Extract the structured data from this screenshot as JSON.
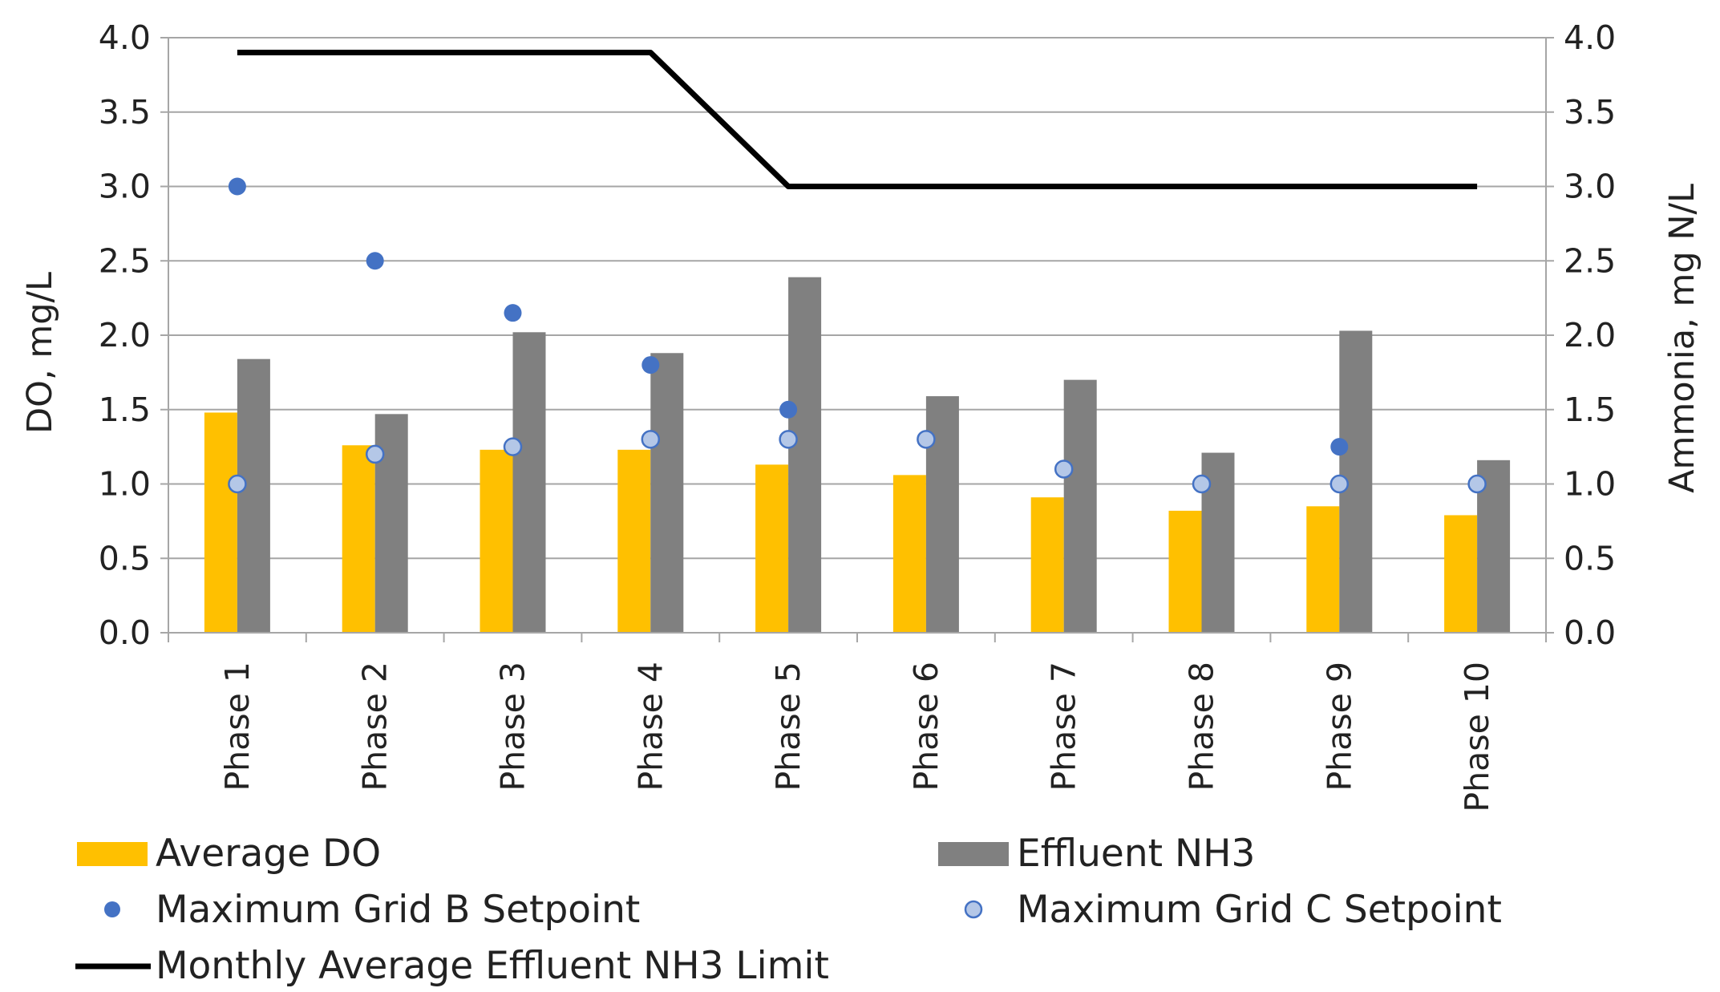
{
  "chart_data": {
    "type": "bar",
    "title": "",
    "categories": [
      "Phase 1",
      "Phase 2",
      "Phase 3",
      "Phase 4",
      "Phase 5",
      "Phase 6",
      "Phase 7",
      "Phase 8",
      "Phase 9",
      "Phase 10"
    ],
    "ylabel_left": "DO, mg/L",
    "ylabel_right": "Ammonia, mg N/L",
    "ylim_left": [
      0,
      4
    ],
    "ylim_right": [
      0,
      4
    ],
    "yticks": [
      "0.0",
      "0.5",
      "1.0",
      "1.5",
      "2.0",
      "2.5",
      "3.0",
      "3.5",
      "4.0"
    ],
    "grid": true,
    "legend_position": "bottom",
    "colors": {
      "average_do": "#FFC000",
      "effluent_nh3": "#808080",
      "grid_b": "#4472C4",
      "grid_c_fill": "#B4C7E7",
      "grid_c_stroke": "#4472C4",
      "nh3_limit": "#000000",
      "gridline": "#A6A6A6"
    },
    "series": [
      {
        "name": "Average DO",
        "kind": "bar",
        "axis": "left",
        "values": [
          1.48,
          1.26,
          1.23,
          1.23,
          1.13,
          1.06,
          0.91,
          0.82,
          0.85,
          0.79
        ]
      },
      {
        "name": "Effluent NH3",
        "kind": "bar",
        "axis": "right",
        "values": [
          1.84,
          1.47,
          2.02,
          1.88,
          2.39,
          1.59,
          1.7,
          1.21,
          2.03,
          1.16
        ]
      },
      {
        "name": "Maximum Grid B Setpoint",
        "kind": "scatter",
        "axis": "left",
        "values": [
          3.0,
          2.5,
          2.15,
          1.8,
          1.5,
          null,
          null,
          null,
          1.25,
          null
        ]
      },
      {
        "name": "Maximum Grid C Setpoint",
        "kind": "scatter",
        "axis": "left",
        "values": [
          1.0,
          1.2,
          1.25,
          1.3,
          1.3,
          1.3,
          1.1,
          1.0,
          1.0,
          1.0
        ]
      },
      {
        "name": "Monthly Average Effluent NH3 Limit",
        "kind": "line",
        "axis": "right",
        "values": [
          3.9,
          3.9,
          3.9,
          3.9,
          3.0,
          3.0,
          3.0,
          3.0,
          3.0,
          3.0
        ]
      }
    ]
  }
}
